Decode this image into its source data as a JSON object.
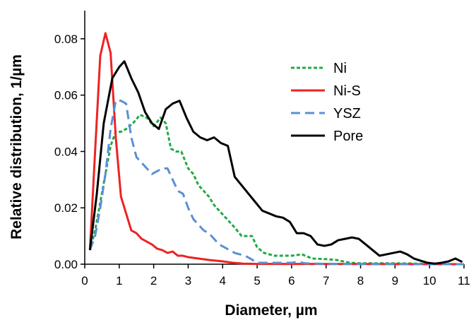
{
  "chart_data": {
    "type": "line",
    "xlabel": "Diameter, µm",
    "ylabel": "Relative distribution, 1/µm",
    "xlim": [
      0,
      11
    ],
    "ylim": [
      0,
      0.09
    ],
    "x_ticks": [
      "0",
      "1",
      "2",
      "3",
      "4",
      "5",
      "6",
      "7",
      "8",
      "9",
      "10",
      "11"
    ],
    "y_ticks": [
      "0.00",
      "0.02",
      "0.04",
      "0.06",
      "0.08"
    ],
    "grid": false,
    "legend_position": "right",
    "series": [
      {
        "name": "Ni",
        "color": "#22aa44",
        "style": "dotted",
        "points": [
          [
            0.15,
            0.005
          ],
          [
            0.3,
            0.012
          ],
          [
            0.45,
            0.022
          ],
          [
            0.6,
            0.032
          ],
          [
            0.75,
            0.042
          ],
          [
            0.9,
            0.047
          ],
          [
            1.05,
            0.047
          ],
          [
            1.2,
            0.048
          ],
          [
            1.4,
            0.05
          ],
          [
            1.6,
            0.053
          ],
          [
            1.8,
            0.052
          ],
          [
            2.0,
            0.049
          ],
          [
            2.2,
            0.052
          ],
          [
            2.35,
            0.05
          ],
          [
            2.5,
            0.041
          ],
          [
            2.65,
            0.04
          ],
          [
            2.8,
            0.04
          ],
          [
            3.0,
            0.034
          ],
          [
            3.15,
            0.032
          ],
          [
            3.3,
            0.028
          ],
          [
            3.45,
            0.026
          ],
          [
            3.6,
            0.024
          ],
          [
            3.75,
            0.021
          ],
          [
            3.9,
            0.019
          ],
          [
            4.05,
            0.017
          ],
          [
            4.2,
            0.015
          ],
          [
            4.35,
            0.013
          ],
          [
            4.55,
            0.01
          ],
          [
            4.7,
            0.01
          ],
          [
            4.85,
            0.01
          ],
          [
            5.0,
            0.006
          ],
          [
            5.2,
            0.004
          ],
          [
            5.5,
            0.003
          ],
          [
            6.0,
            0.003
          ],
          [
            6.3,
            0.0035
          ],
          [
            6.6,
            0.002
          ],
          [
            7.0,
            0.0018
          ],
          [
            7.3,
            0.0015
          ],
          [
            7.7,
            0.0005
          ],
          [
            8.0,
            0.0003
          ],
          [
            9.0,
            0.0003
          ],
          [
            11.0,
            0.0
          ]
        ]
      },
      {
        "name": "Ni-S",
        "color": "#ee2222",
        "style": "solid",
        "points": [
          [
            0.15,
            0.005
          ],
          [
            0.3,
            0.04
          ],
          [
            0.45,
            0.074
          ],
          [
            0.6,
            0.082
          ],
          [
            0.75,
            0.075
          ],
          [
            0.9,
            0.045
          ],
          [
            1.05,
            0.024
          ],
          [
            1.2,
            0.018
          ],
          [
            1.35,
            0.012
          ],
          [
            1.5,
            0.011
          ],
          [
            1.65,
            0.009
          ],
          [
            1.8,
            0.008
          ],
          [
            1.95,
            0.007
          ],
          [
            2.1,
            0.0055
          ],
          [
            2.25,
            0.005
          ],
          [
            2.4,
            0.004
          ],
          [
            2.55,
            0.0045
          ],
          [
            2.7,
            0.003
          ],
          [
            2.85,
            0.003
          ],
          [
            3.0,
            0.0025
          ],
          [
            3.3,
            0.002
          ],
          [
            3.6,
            0.0015
          ],
          [
            4.0,
            0.001
          ],
          [
            4.3,
            0.0005
          ],
          [
            4.6,
            0.0002
          ],
          [
            5.0,
            0.0001
          ],
          [
            11.0,
            0.0
          ]
        ]
      },
      {
        "name": "YSZ",
        "color": "#5b8fd4",
        "style": "dashed",
        "points": [
          [
            0.15,
            0.005
          ],
          [
            0.3,
            0.01
          ],
          [
            0.45,
            0.02
          ],
          [
            0.6,
            0.032
          ],
          [
            0.75,
            0.048
          ],
          [
            0.9,
            0.058
          ],
          [
            1.05,
            0.058
          ],
          [
            1.2,
            0.057
          ],
          [
            1.35,
            0.045
          ],
          [
            1.5,
            0.038
          ],
          [
            1.65,
            0.036
          ],
          [
            1.8,
            0.034
          ],
          [
            1.95,
            0.032
          ],
          [
            2.1,
            0.033
          ],
          [
            2.25,
            0.034
          ],
          [
            2.4,
            0.034
          ],
          [
            2.55,
            0.03
          ],
          [
            2.7,
            0.026
          ],
          [
            2.85,
            0.025
          ],
          [
            3.0,
            0.02
          ],
          [
            3.15,
            0.016
          ],
          [
            3.3,
            0.014
          ],
          [
            3.45,
            0.012
          ],
          [
            3.6,
            0.011
          ],
          [
            3.75,
            0.009
          ],
          [
            3.9,
            0.007
          ],
          [
            4.05,
            0.006
          ],
          [
            4.2,
            0.005
          ],
          [
            4.35,
            0.004
          ],
          [
            4.5,
            0.0035
          ],
          [
            4.65,
            0.003
          ],
          [
            4.8,
            0.002
          ],
          [
            5.0,
            0.0005
          ],
          [
            6.0,
            0.0005
          ],
          [
            6.2,
            0.0008
          ],
          [
            6.4,
            0.0003
          ],
          [
            7.0,
            0.0001
          ],
          [
            11.0,
            0.0
          ]
        ]
      },
      {
        "name": "Pore",
        "color": "#000000",
        "style": "solid",
        "points": [
          [
            0.15,
            0.005
          ],
          [
            0.35,
            0.025
          ],
          [
            0.55,
            0.05
          ],
          [
            0.8,
            0.066
          ],
          [
            1.0,
            0.07
          ],
          [
            1.15,
            0.072
          ],
          [
            1.35,
            0.066
          ],
          [
            1.55,
            0.061
          ],
          [
            1.75,
            0.054
          ],
          [
            1.95,
            0.05
          ],
          [
            2.15,
            0.048
          ],
          [
            2.35,
            0.055
          ],
          [
            2.55,
            0.057
          ],
          [
            2.75,
            0.058
          ],
          [
            2.95,
            0.052
          ],
          [
            3.15,
            0.047
          ],
          [
            3.35,
            0.045
          ],
          [
            3.55,
            0.044
          ],
          [
            3.75,
            0.045
          ],
          [
            3.95,
            0.043
          ],
          [
            4.15,
            0.042
          ],
          [
            4.35,
            0.031
          ],
          [
            4.55,
            0.028
          ],
          [
            4.75,
            0.025
          ],
          [
            4.95,
            0.022
          ],
          [
            5.15,
            0.019
          ],
          [
            5.35,
            0.018
          ],
          [
            5.55,
            0.017
          ],
          [
            5.75,
            0.0165
          ],
          [
            5.95,
            0.015
          ],
          [
            6.15,
            0.011
          ],
          [
            6.35,
            0.011
          ],
          [
            6.55,
            0.01
          ],
          [
            6.75,
            0.007
          ],
          [
            6.95,
            0.0065
          ],
          [
            7.15,
            0.007
          ],
          [
            7.35,
            0.0085
          ],
          [
            7.55,
            0.009
          ],
          [
            7.75,
            0.0095
          ],
          [
            7.95,
            0.009
          ],
          [
            8.15,
            0.007
          ],
          [
            8.35,
            0.005
          ],
          [
            8.55,
            0.003
          ],
          [
            8.75,
            0.0035
          ],
          [
            8.95,
            0.004
          ],
          [
            9.15,
            0.0045
          ],
          [
            9.35,
            0.0035
          ],
          [
            9.55,
            0.002
          ],
          [
            9.75,
            0.0012
          ],
          [
            9.95,
            0.0005
          ],
          [
            10.15,
            0.0002
          ],
          [
            10.35,
            0.0005
          ],
          [
            10.55,
            0.001
          ],
          [
            10.75,
            0.002
          ],
          [
            10.95,
            0.0008
          ]
        ]
      }
    ]
  }
}
